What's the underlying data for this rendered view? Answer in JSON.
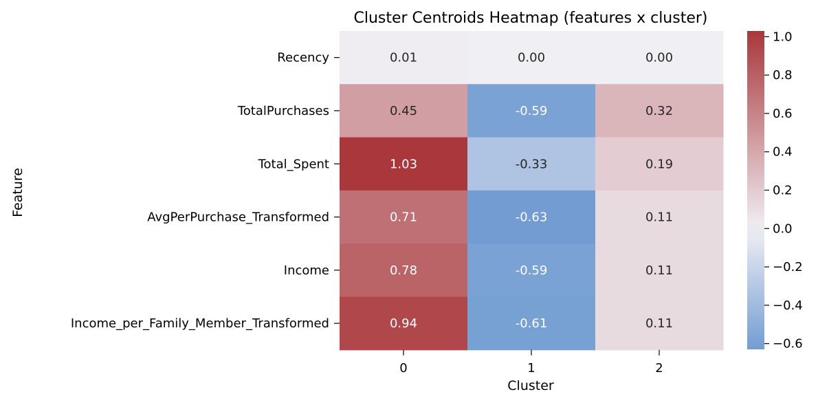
{
  "chart_data": {
    "type": "heatmap",
    "title": "Cluster Centroids Heatmap (features x cluster)",
    "xlabel": "Cluster",
    "ylabel": "Feature",
    "x_categories": [
      "0",
      "1",
      "2"
    ],
    "y_categories": [
      "Recency",
      "TotalPurchases",
      "Total_Spent",
      "AvgPerPurchase_Transformed",
      "Income",
      "Income_per_Family_Member_Transformed"
    ],
    "values": [
      [
        0.01,
        -0.0,
        -0.0
      ],
      [
        0.45,
        -0.59,
        0.32
      ],
      [
        1.03,
        -0.33,
        0.19
      ],
      [
        0.71,
        -0.63,
        0.11
      ],
      [
        0.78,
        -0.59,
        0.11
      ],
      [
        0.94,
        -0.61,
        0.11
      ]
    ],
    "value_format": "2f",
    "colormap": "vlag",
    "center": 0.0,
    "vmin": -0.63,
    "vmax": 1.03,
    "colorbar_ticks": [
      1.0,
      0.8,
      0.6,
      0.4,
      0.2,
      0.0,
      -0.2,
      -0.4,
      -0.6
    ],
    "colors": {
      "low": "#2369bd",
      "mid": "#f0eff4",
      "high": "#a9373b"
    }
  }
}
